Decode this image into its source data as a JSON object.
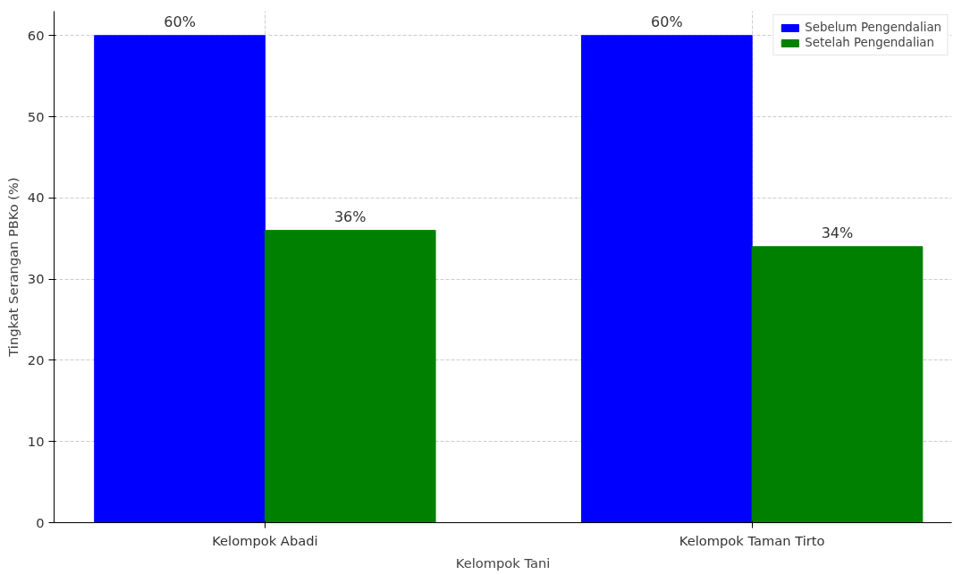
{
  "chart_data": {
    "type": "bar",
    "xlabel": "Kelompok Tani",
    "ylabel": "Tingkat Serangan PBKo (%)",
    "categories": [
      "Kelompok Abadi",
      "Kelompok Taman Tirto"
    ],
    "series": [
      {
        "name": "Sebelum Pengendalian",
        "color": "#0000ff",
        "values": [
          60,
          60
        ],
        "value_labels": [
          "60%",
          "60%"
        ]
      },
      {
        "name": "Setelah Pengendalian",
        "color": "#008000",
        "values": [
          36,
          34
        ],
        "value_labels": [
          "36%",
          "34%"
        ]
      }
    ],
    "ylim": [
      0,
      63
    ],
    "yticks": [
      0,
      10,
      20,
      30,
      40,
      50,
      60
    ],
    "grid": true,
    "legend": "top right"
  }
}
